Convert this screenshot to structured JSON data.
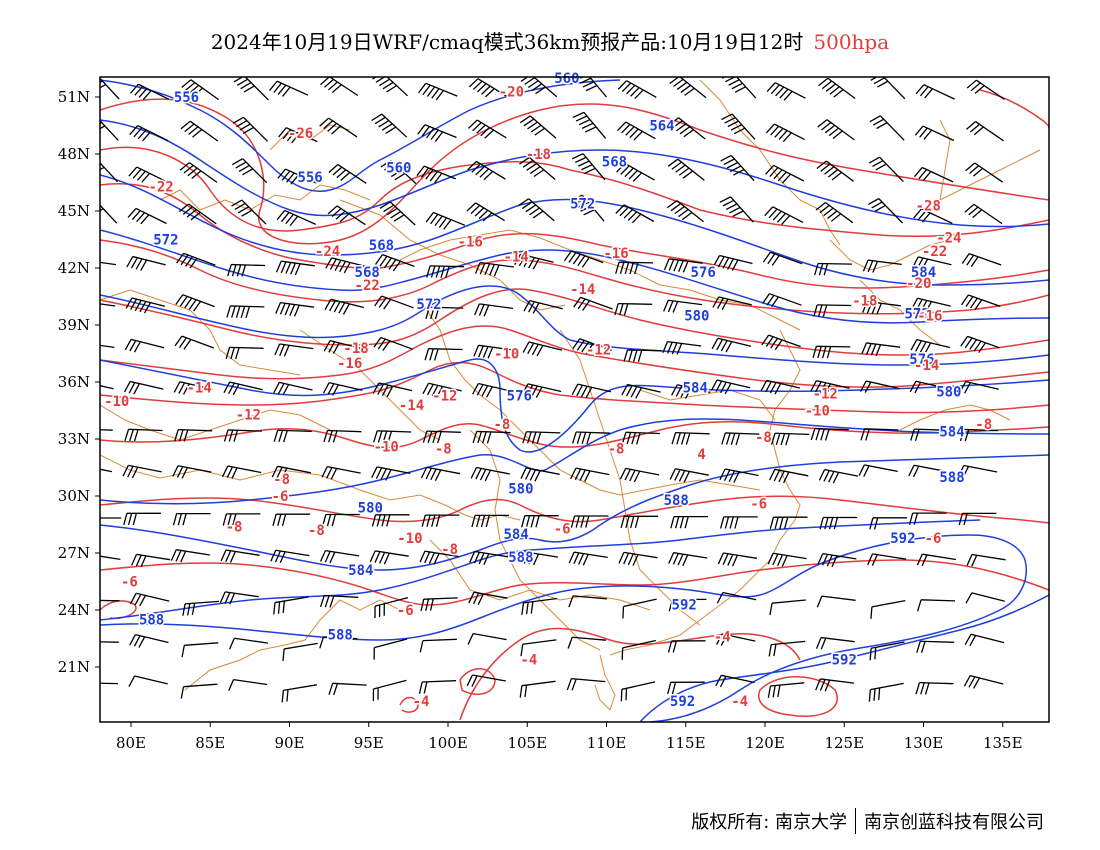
{
  "header": {
    "title": "2024年10月19日WRF/cmaq模式36km预报产品:10月19日12时",
    "level_label": "500hpa"
  },
  "axes": {
    "y_ticks": [
      "51N",
      "48N",
      "45N",
      "42N",
      "39N",
      "36N",
      "33N",
      "30N",
      "27N",
      "24N",
      "21N"
    ],
    "x_ticks": [
      "80E",
      "85E",
      "90E",
      "95E",
      "100E",
      "105E",
      "110E",
      "115E",
      "120E",
      "125E",
      "130E",
      "135E"
    ]
  },
  "colors": {
    "geopotential_height": "#1f3fdc",
    "temperature": "#e23c3c",
    "boundaries": "#d98a3a",
    "wind_barbs": "#000000"
  },
  "height_labels": [
    {
      "text": "556",
      "lon": 83.5,
      "lat": 51.0
    },
    {
      "text": "556",
      "lon": 91.3,
      "lat": 46.8
    },
    {
      "text": "560",
      "lon": 96.9,
      "lat": 47.3
    },
    {
      "text": "560",
      "lon": 107.5,
      "lat": 52.0
    },
    {
      "text": "564",
      "lon": 113.5,
      "lat": 49.5
    },
    {
      "text": "568",
      "lon": 110.5,
      "lat": 47.6
    },
    {
      "text": "572",
      "lon": 82.2,
      "lat": 43.5
    },
    {
      "text": "572",
      "lon": 108.5,
      "lat": 45.4
    },
    {
      "text": "568",
      "lon": 95.8,
      "lat": 43.2
    },
    {
      "text": "568",
      "lon": 94.9,
      "lat": 41.8
    },
    {
      "text": "572",
      "lon": 98.8,
      "lat": 40.1
    },
    {
      "text": "576",
      "lon": 116.1,
      "lat": 41.8
    },
    {
      "text": "580",
      "lon": 115.7,
      "lat": 39.5
    },
    {
      "text": "584",
      "lon": 130.0,
      "lat": 41.8
    },
    {
      "text": "572",
      "lon": 129.6,
      "lat": 39.6
    },
    {
      "text": "576",
      "lon": 129.9,
      "lat": 37.2
    },
    {
      "text": "580",
      "lon": 131.6,
      "lat": 35.5
    },
    {
      "text": "584",
      "lon": 115.6,
      "lat": 35.7
    },
    {
      "text": "576",
      "lon": 104.5,
      "lat": 35.3
    },
    {
      "text": "584",
      "lon": 131.8,
      "lat": 33.4
    },
    {
      "text": "588",
      "lon": 131.8,
      "lat": 31.0
    },
    {
      "text": "580",
      "lon": 104.6,
      "lat": 30.4
    },
    {
      "text": "580",
      "lon": 95.1,
      "lat": 29.4
    },
    {
      "text": "588",
      "lon": 114.4,
      "lat": 29.8
    },
    {
      "text": "584",
      "lon": 104.3,
      "lat": 28.0
    },
    {
      "text": "588",
      "lon": 104.6,
      "lat": 26.8
    },
    {
      "text": "592",
      "lon": 128.7,
      "lat": 27.8
    },
    {
      "text": "584",
      "lon": 94.5,
      "lat": 26.1
    },
    {
      "text": "592",
      "lon": 114.9,
      "lat": 24.3
    },
    {
      "text": "588",
      "lon": 81.3,
      "lat": 23.5
    },
    {
      "text": "588",
      "lon": 93.2,
      "lat": 22.7
    },
    {
      "text": "592",
      "lon": 125.0,
      "lat": 21.4
    },
    {
      "text": "592",
      "lon": 114.8,
      "lat": 19.2
    }
  ],
  "temperature_labels": [
    {
      "text": "-20",
      "lon": 104.0,
      "lat": 51.3
    },
    {
      "text": "-26",
      "lon": 90.7,
      "lat": 49.1
    },
    {
      "text": "-18",
      "lon": 105.7,
      "lat": 48.0
    },
    {
      "text": "-22",
      "lon": 81.9,
      "lat": 46.3
    },
    {
      "text": "-16",
      "lon": 101.4,
      "lat": 43.4
    },
    {
      "text": "-14",
      "lon": 104.3,
      "lat": 42.6
    },
    {
      "text": "-16",
      "lon": 110.6,
      "lat": 42.8
    },
    {
      "text": "-24",
      "lon": 92.4,
      "lat": 42.9
    },
    {
      "text": "-22",
      "lon": 94.9,
      "lat": 41.1
    },
    {
      "text": "-14",
      "lon": 108.5,
      "lat": 40.9
    },
    {
      "text": "-28",
      "lon": 130.3,
      "lat": 45.3
    },
    {
      "text": "-24",
      "lon": 131.6,
      "lat": 43.6
    },
    {
      "text": "-22",
      "lon": 130.7,
      "lat": 42.9
    },
    {
      "text": "-20",
      "lon": 129.7,
      "lat": 41.2
    },
    {
      "text": "-18",
      "lon": 126.3,
      "lat": 40.3
    },
    {
      "text": "-16",
      "lon": 130.4,
      "lat": 39.5
    },
    {
      "text": "-18",
      "lon": 94.2,
      "lat": 37.8
    },
    {
      "text": "-16",
      "lon": 93.8,
      "lat": 37.0
    },
    {
      "text": "-10",
      "lon": 103.7,
      "lat": 37.5
    },
    {
      "text": "-12",
      "lon": 109.5,
      "lat": 37.7
    },
    {
      "text": "-14",
      "lon": 130.2,
      "lat": 36.9
    },
    {
      "text": "-14",
      "lon": 84.3,
      "lat": 35.7
    },
    {
      "text": "-12",
      "lon": 99.8,
      "lat": 35.3
    },
    {
      "text": "-10",
      "lon": 79.1,
      "lat": 35.0
    },
    {
      "text": "-12",
      "lon": 123.8,
      "lat": 35.4
    },
    {
      "text": "-14",
      "lon": 97.7,
      "lat": 34.8
    },
    {
      "text": "-12",
      "lon": 87.4,
      "lat": 34.3
    },
    {
      "text": "-10",
      "lon": 123.3,
      "lat": 34.5
    },
    {
      "text": "-8",
      "lon": 103.4,
      "lat": 33.8
    },
    {
      "text": "-8",
      "lon": 133.8,
      "lat": 33.8
    },
    {
      "text": "-10",
      "lon": 96.1,
      "lat": 32.6
    },
    {
      "text": "-8",
      "lon": 99.7,
      "lat": 32.5
    },
    {
      "text": "-8",
      "lon": 110.6,
      "lat": 32.5
    },
    {
      "text": "-8",
      "lon": 119.9,
      "lat": 33.1
    },
    {
      "text": "-8",
      "lon": 89.5,
      "lat": 30.9
    },
    {
      "text": "-6",
      "lon": 89.4,
      "lat": 30.0
    },
    {
      "text": "-6",
      "lon": 119.6,
      "lat": 29.6
    },
    {
      "text": "-8",
      "lon": 86.5,
      "lat": 28.4
    },
    {
      "text": "-8",
      "lon": 91.7,
      "lat": 28.2
    },
    {
      "text": "-6",
      "lon": 107.2,
      "lat": 28.3
    },
    {
      "text": "-10",
      "lon": 97.6,
      "lat": 27.8
    },
    {
      "text": "-8",
      "lon": 100.1,
      "lat": 27.2
    },
    {
      "text": "-6",
      "lon": 130.6,
      "lat": 27.8
    },
    {
      "text": "-6",
      "lon": 79.9,
      "lat": 25.5
    },
    {
      "text": "-6",
      "lon": 97.3,
      "lat": 24.0
    },
    {
      "text": "-4",
      "lon": 117.3,
      "lat": 22.6
    },
    {
      "text": "-4",
      "lon": 105.1,
      "lat": 21.4
    },
    {
      "text": "-4",
      "lon": 98.3,
      "lat": 19.2
    },
    {
      "text": "-4",
      "lon": 118.4,
      "lat": 19.2
    },
    {
      "text": "4",
      "lon": 116.0,
      "lat": 32.2
    }
  ],
  "footer": {
    "copyright": "版权所有: 南京大学",
    "company": "南京创蓝科技有限公司"
  }
}
